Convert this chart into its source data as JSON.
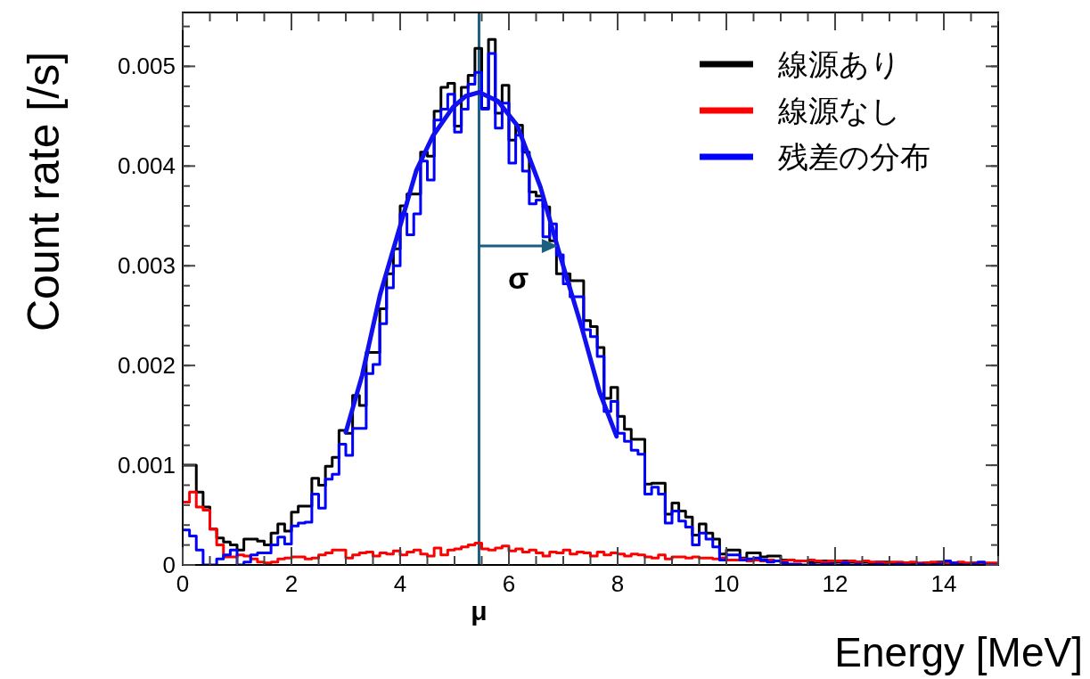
{
  "chart_data": {
    "type": "histogram",
    "xlabel": "Energy [MeV]",
    "ylabel": "Count rate [/s]",
    "xlim": [
      0,
      15
    ],
    "xticks": [
      0,
      2,
      4,
      6,
      8,
      10,
      12,
      14
    ],
    "ylim": [
      0,
      0.00554
    ],
    "yticks": [
      0,
      0.001,
      0.002,
      0.003,
      0.004,
      0.005
    ],
    "legend": "top right",
    "bins": [
      0,
      0.125,
      0.25,
      0.375,
      0.5,
      0.625,
      0.75,
      0.875,
      1,
      1.125,
      1.25,
      1.375,
      1.5,
      1.625,
      1.75,
      1.875,
      2,
      2.125,
      2.25,
      2.375,
      2.5,
      2.625,
      2.75,
      2.875,
      3,
      3.125,
      3.25,
      3.375,
      3.5,
      3.625,
      3.75,
      3.875,
      4,
      4.125,
      4.25,
      4.375,
      4.5,
      4.625,
      4.75,
      4.875,
      5,
      5.125,
      5.25,
      5.375,
      5.5,
      5.625,
      5.75,
      5.875,
      6,
      6.125,
      6.25,
      6.375,
      6.5,
      6.625,
      6.75,
      6.875,
      7,
      7.125,
      7.25,
      7.375,
      7.5,
      7.625,
      7.75,
      7.875,
      8,
      8.125,
      8.25,
      8.375,
      8.5,
      8.625,
      8.75,
      8.875,
      9,
      9.125,
      9.25,
      9.375,
      9.5,
      9.625,
      9.75,
      9.875,
      10,
      10.125,
      10.25,
      10.375,
      10.5,
      10.625,
      10.75,
      10.875,
      11,
      11.125,
      11.25,
      11.375,
      11.5,
      11.625,
      11.75,
      11.875,
      12,
      12.125,
      12.25,
      12.375,
      12.5,
      12.625,
      12.75,
      12.875,
      13,
      13.125,
      13.25,
      13.375,
      13.5,
      13.625,
      13.75,
      13.875,
      14,
      14.125,
      14.25,
      14.375,
      14.5,
      14.625,
      14.75,
      14.875,
      15
    ],
    "series": [
      {
        "name": "線源あり",
        "color": "#000000",
        "values": [
          0.001,
          0.001,
          0.00073,
          0.00058,
          0.00036,
          0.00027,
          0.00023,
          0.0002,
          0.00015,
          0.00026,
          0.00026,
          0.00024,
          0.0002,
          0.00032,
          0.00041,
          0.00034,
          0.00053,
          0.00059,
          0.00059,
          0.00087,
          0.0008,
          0.00099,
          0.00108,
          0.00135,
          0.00132,
          0.0017,
          0.0016,
          0.00213,
          0.00213,
          0.00257,
          0.00292,
          0.00317,
          0.0036,
          0.00372,
          0.00372,
          0.00414,
          0.0041,
          0.00455,
          0.00479,
          0.00483,
          0.0044,
          0.00479,
          0.00491,
          0.00518,
          0.00458,
          0.00527,
          0.00453,
          0.00481,
          0.00426,
          0.00441,
          0.00414,
          0.00374,
          0.0037,
          0.00359,
          0.00325,
          0.00292,
          0.00292,
          0.00285,
          0.00285,
          0.00245,
          0.00239,
          0.00218,
          0.00167,
          0.00178,
          0.00149,
          0.00136,
          0.00126,
          0.00126,
          0.00081,
          0.00082,
          0.00082,
          0.00051,
          0.00062,
          0.00054,
          0.00048,
          0.0003,
          0.00041,
          0.00032,
          0.00026,
          0.00011,
          0.00015,
          0.00015,
          7e-05,
          0.00012,
          0.00012,
          8e-05,
          9e-05,
          9e-05,
          5e-05,
          5e-05,
          4e-05,
          4e-05,
          3e-05,
          3e-05,
          4e-05,
          3e-05,
          3e-05,
          4e-05,
          3e-05,
          3e-05,
          3e-05,
          2e-05,
          3e-05,
          3e-05,
          2e-05,
          2e-05,
          2e-05,
          2e-05,
          1e-05,
          2e-05,
          2e-05,
          3e-05,
          3e-05,
          2e-05,
          1e-05,
          1e-05,
          2e-05,
          2e-05,
          1e-05,
          1e-05
        ]
      },
      {
        "name": "線源なし",
        "color": "#ff0000",
        "values": [
          0.00063,
          0.00073,
          0.00058,
          0.00055,
          0.00036,
          0.0002,
          8e-05,
          8e-05,
          0.0001,
          9e-05,
          6e-05,
          3e-05,
          2e-05,
          3e-05,
          6e-05,
          7e-05,
          8e-05,
          8e-05,
          6e-05,
          7e-05,
          0.0001,
          0.00012,
          0.00015,
          0.00015,
          7e-05,
          0.0001,
          0.00012,
          0.00013,
          9e-05,
          0.00012,
          0.00011,
          0.00014,
          0.0001,
          0.00013,
          0.00015,
          0.00011,
          9e-05,
          0.00017,
          0.0001,
          0.00015,
          0.00016,
          0.00018,
          0.0002,
          0.00022,
          0.00016,
          0.00015,
          0.00017,
          0.00019,
          0.00014,
          0.00016,
          0.00013,
          0.00015,
          0.00012,
          9e-05,
          0.00013,
          0.00012,
          0.00015,
          0.00011,
          0.00013,
          0.00012,
          9e-05,
          0.00013,
          0.0001,
          0.00012,
          0.00011,
          9e-05,
          0.00011,
          0.0001,
          8e-05,
          7e-05,
          0.0001,
          6e-05,
          8e-05,
          8e-05,
          7e-05,
          8e-05,
          7e-05,
          7e-05,
          6e-05,
          7e-05,
          5e-05,
          5e-05,
          6e-05,
          4e-05,
          5e-05,
          4e-05,
          5e-05,
          4e-05,
          4e-05,
          5e-05,
          4e-05,
          4e-05,
          5e-05,
          4e-05,
          3e-05,
          4e-05,
          4e-05,
          3e-05,
          4e-05,
          3e-05,
          4e-05,
          3e-05,
          3e-05,
          2e-05,
          3e-05,
          3e-05,
          2e-05,
          3e-05,
          2e-05,
          2e-05,
          3e-05,
          2e-05,
          2e-05,
          2e-05,
          3e-05,
          2e-05,
          2e-05,
          2e-05,
          2e-05,
          2e-05
        ]
      },
      {
        "name": "残差の分布",
        "color": "#0000ff",
        "values": [
          0.00035,
          0.00029,
          0.00015,
          0,
          0,
          6e-05,
          0.0001,
          0.00015,
          0,
          3e-05,
          0.0001,
          0.00012,
          0.00012,
          0.0002,
          0.00028,
          0.00021,
          0.00039,
          0.00042,
          0.00043,
          0.00071,
          0.00057,
          0.00086,
          0.00091,
          0.00121,
          0.0011,
          0.00137,
          0.00137,
          0.00192,
          0.00201,
          0.00242,
          0.00278,
          0.003,
          0.00352,
          0.00331,
          0.00352,
          0.00405,
          0.00386,
          0.00446,
          0.00457,
          0.00472,
          0.00434,
          0.00457,
          0.00482,
          0.00494,
          0.00457,
          0.00513,
          0.00438,
          0.00463,
          0.00403,
          0.00431,
          0.00395,
          0.00362,
          0.00366,
          0.00329,
          0.00342,
          0.00311,
          0.00282,
          0.00269,
          0.00269,
          0.00236,
          0.00229,
          0.00209,
          0.00154,
          0.00164,
          0.00132,
          0.00124,
          0.00115,
          0.00111,
          0.00071,
          0.00078,
          0.00071,
          0.00042,
          0.00054,
          0.00044,
          0.00038,
          0.0002,
          0.00032,
          0.00026,
          0.00018,
          5e-05,
          0.0001,
          0.0001,
          5e-05,
          6e-05,
          7e-05,
          5e-05,
          3e-05,
          4e-05,
          2e-05,
          1e-05,
          1e-05,
          0,
          1e-05,
          0,
          1e-05,
          1e-05,
          0,
          2e-05,
          0,
          1e-05,
          0,
          0,
          1e-05,
          0,
          0,
          1e-05,
          0,
          0,
          1e-05,
          0,
          0,
          1e-05,
          4e-05,
          2e-05,
          0,
          0,
          1e-05,
          3e-05,
          0,
          0
        ]
      },
      {
        "type": "line",
        "color": "#1010f0",
        "x": [
          3.0,
          3.3,
          3.63,
          4.0,
          4.3,
          4.6,
          4.97,
          5.2,
          5.45,
          5.8,
          6.15,
          6.58,
          6.91,
          7.34,
          7.67,
          7.98
        ],
        "values": [
          0.00133,
          0.0019,
          0.00271,
          0.0034,
          0.00396,
          0.0043,
          0.00459,
          0.0047,
          0.00474,
          0.00465,
          0.00441,
          0.00379,
          0.00316,
          0.00238,
          0.00173,
          0.00129
        ]
      }
    ],
    "ref_lines": [
      {
        "axis": "x",
        "value": 5.45,
        "label": "μ",
        "color": "#1a5e80"
      }
    ],
    "annotations": [
      {
        "text": "σ",
        "x": 6.9,
        "y": 0.0032
      }
    ]
  }
}
